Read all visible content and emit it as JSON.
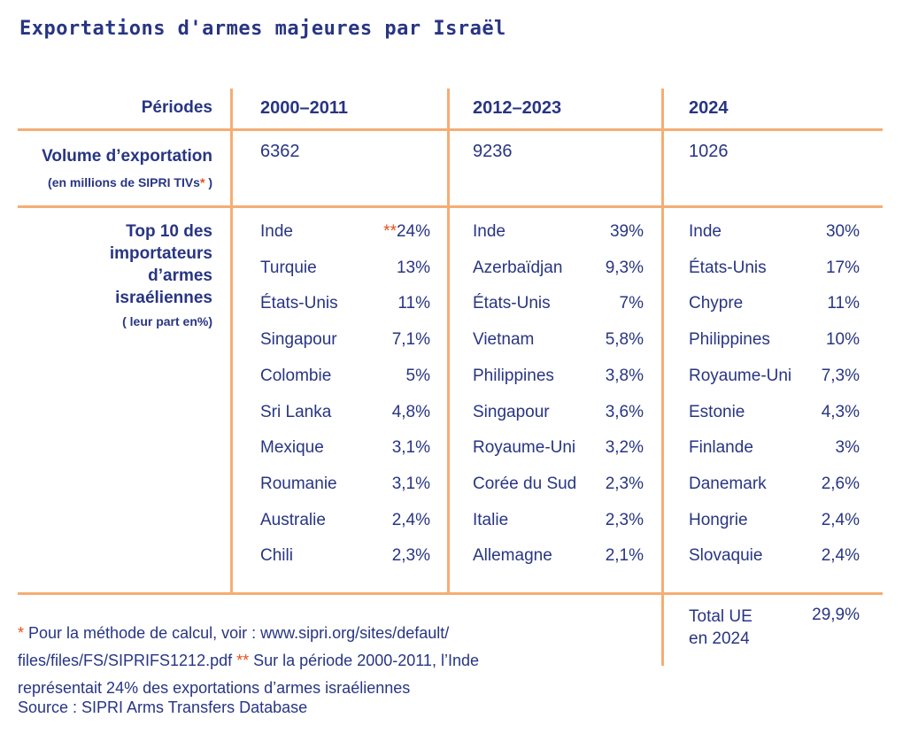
{
  "title": "Exportations d'armes majeures par Israël",
  "chart_data": {
    "type": "table",
    "title": "Exportations d'armes majeures par Israël",
    "row_labels": {
      "periods": "Périodes",
      "volume": "Volume d’exportation",
      "volume_unit": "(en millions de SIPRI TIVs",
      "volume_unit_star": "*",
      "volume_unit_close": " )",
      "top10_lines": [
        "Top 10 des",
        "importateurs",
        "d’armes",
        "israéliennes"
      ],
      "top10_unit": "( leur part en%)"
    },
    "periods": [
      {
        "label": "2000–2011",
        "volume": "6362",
        "importers": [
          [
            "Inde",
            "24%"
          ],
          [
            "Turquie",
            "13%"
          ],
          [
            "États-Unis",
            "11%"
          ],
          [
            "Singapour",
            "7,1%"
          ],
          [
            "Colombie",
            "5%"
          ],
          [
            "Sri Lanka",
            "4,8%"
          ],
          [
            "Mexique",
            "3,1%"
          ],
          [
            "Roumanie",
            "3,1%"
          ],
          [
            "Australie",
            "2,4%"
          ],
          [
            "Chili",
            "2,3%"
          ]
        ]
      },
      {
        "label": "2012–2023",
        "volume": "9236",
        "importers": [
          [
            "Inde",
            "39%"
          ],
          [
            "Azerbaïdjan",
            "9,3%"
          ],
          [
            "États-Unis",
            "7%"
          ],
          [
            "Vietnam",
            "5,8%"
          ],
          [
            "Philippines",
            "3,8%"
          ],
          [
            "Singapour",
            "3,6%"
          ],
          [
            "Royaume-Uni",
            "3,2%"
          ],
          [
            "Corée du Sud",
            "2,3%"
          ],
          [
            "Italie",
            "2,3%"
          ],
          [
            "Allemagne",
            "2,1%"
          ]
        ]
      },
      {
        "label": "2024",
        "volume": "1026",
        "importers": [
          [
            "Inde",
            "30%"
          ],
          [
            "États-Unis",
            "17%"
          ],
          [
            "Chypre",
            "11%"
          ],
          [
            "Philippines",
            "10%"
          ],
          [
            "Royaume-Uni",
            "7,3%"
          ],
          [
            "Estonie",
            "4,3%"
          ],
          [
            "Finlande",
            "3%"
          ],
          [
            "Danemark",
            "2,6%"
          ],
          [
            "Hongrie",
            "2,4%"
          ],
          [
            "Slovaquie",
            "2,4%"
          ]
        ]
      }
    ],
    "inde_note_marker": "**",
    "total_ue": {
      "label_line1": "Total UE",
      "label_line2": "en 2024",
      "value": "29,9%"
    }
  },
  "footnote": {
    "star1": "*",
    "text1": " Pour la méthode de calcul, voir :  www.sipri.org/sites/default/ files/files/FS/SIPRIFS1212.pdf  ",
    "star2": "**",
    "text2": " Sur la période 2000-2011, l’Inde représentait 24% des exportations d’armes israéliennes"
  },
  "source": "Source : SIPRI Arms Transfers Database",
  "colors": {
    "text": "#283583",
    "lines": "#f6ad73",
    "accent": "#e94e1b"
  }
}
